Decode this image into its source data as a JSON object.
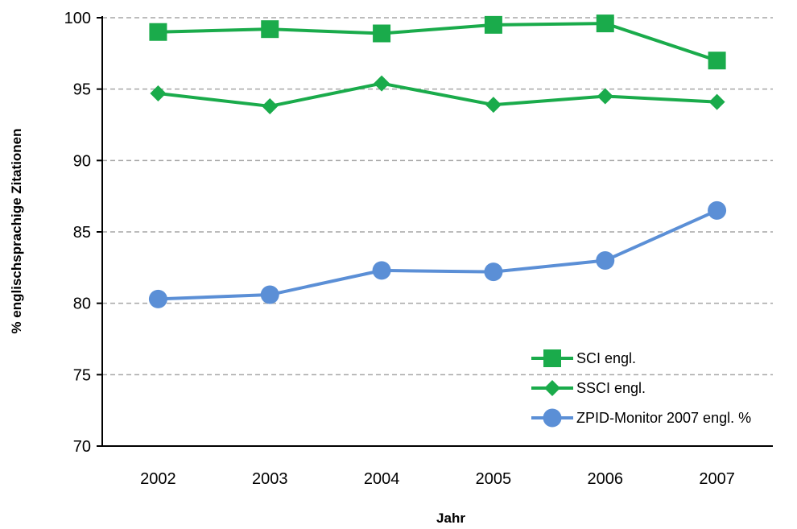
{
  "chart_data": {
    "type": "line",
    "title": "",
    "xlabel": "Jahr",
    "ylabel": "% englischsprachige Zitationen",
    "categories": [
      "2002",
      "2003",
      "2004",
      "2005",
      "2006",
      "2007"
    ],
    "ylim": [
      70,
      100
    ],
    "yticks": [
      70,
      75,
      80,
      85,
      90,
      95,
      100
    ],
    "grid": true,
    "legend_position": "bottom-right",
    "series": [
      {
        "name": "SCI engl.",
        "values": [
          99.0,
          99.2,
          98.9,
          99.5,
          99.6,
          97.0
        ],
        "color": "#1aab4b",
        "marker": "square"
      },
      {
        "name": "SSCI engl.",
        "values": [
          94.7,
          93.8,
          95.4,
          93.9,
          94.5,
          94.1
        ],
        "color": "#1aab4b",
        "marker": "diamond"
      },
      {
        "name": "ZPID-Monitor 2007 engl. %",
        "values": [
          80.3,
          80.6,
          82.3,
          82.2,
          83.0,
          86.5
        ],
        "color": "#5b8fd6",
        "marker": "circle"
      }
    ]
  }
}
